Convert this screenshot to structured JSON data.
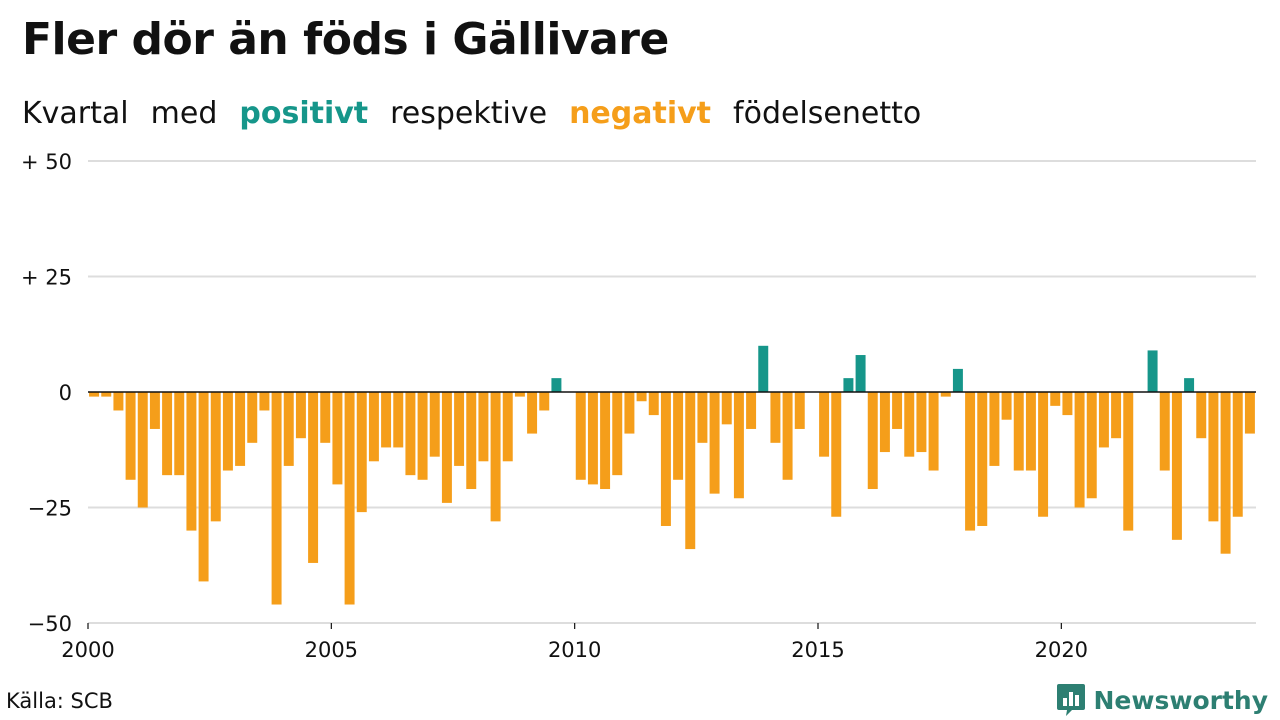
{
  "title": "Fler dör än föds i Gällivare",
  "subtitle": {
    "w1": "Kvartal",
    "w2": "med",
    "positive_word": "positivt",
    "w3": "respektive",
    "negative_word": "negativt",
    "w4": "födelsenetto"
  },
  "colors": {
    "positive": "#16968a",
    "negative": "#f59e1a",
    "grid": "#dddddd",
    "brand": "#2d7f72"
  },
  "source": "Källa: SCB",
  "brand": {
    "name": "Newsworthy",
    "icon": "bar-chart-speech-bubble-icon"
  },
  "chart_data": {
    "type": "bar",
    "title": "",
    "xlabel": "",
    "ylabel": "",
    "ylim": [
      -50,
      50
    ],
    "yticks": [
      {
        "value": 50,
        "label": "+ 50"
      },
      {
        "value": 25,
        "label": "+ 25"
      },
      {
        "value": 0,
        "label": "0"
      },
      {
        "value": -25,
        "label": "−25"
      },
      {
        "value": -50,
        "label": "−50"
      }
    ],
    "xticks": [
      {
        "value": 2000,
        "label": "2000"
      },
      {
        "value": 2005,
        "label": "2005"
      },
      {
        "value": 2010,
        "label": "2010"
      },
      {
        "value": 2015,
        "label": "2015"
      },
      {
        "value": 2020,
        "label": "2020"
      }
    ],
    "first_quarter": "2000 Q1",
    "grid": true,
    "values": [
      -1,
      -1,
      -4,
      -19,
      -25,
      -8,
      -18,
      -18,
      -30,
      -41,
      -28,
      -17,
      -16,
      -11,
      -4,
      -46,
      -16,
      -10,
      -37,
      -11,
      -20,
      -46,
      -26,
      -15,
      -12,
      -12,
      -18,
      -19,
      -14,
      -24,
      -16,
      -21,
      -15,
      -28,
      -15,
      -1,
      -9,
      -4,
      3,
      0,
      -19,
      -20,
      -21,
      -18,
      -9,
      -2,
      -5,
      -29,
      -19,
      -34,
      -11,
      -22,
      -7,
      -23,
      -8,
      10,
      -11,
      -19,
      -8,
      0,
      -14,
      -27,
      3,
      8,
      -21,
      -13,
      -8,
      -14,
      -13,
      -17,
      -1,
      5,
      -30,
      -29,
      -16,
      -6,
      -17,
      -17,
      -27,
      -3,
      -5,
      -25,
      -23,
      -12,
      -10,
      -30,
      0,
      9,
      -17,
      -32,
      3,
      -10,
      -28,
      -35,
      -27,
      -9
    ]
  }
}
